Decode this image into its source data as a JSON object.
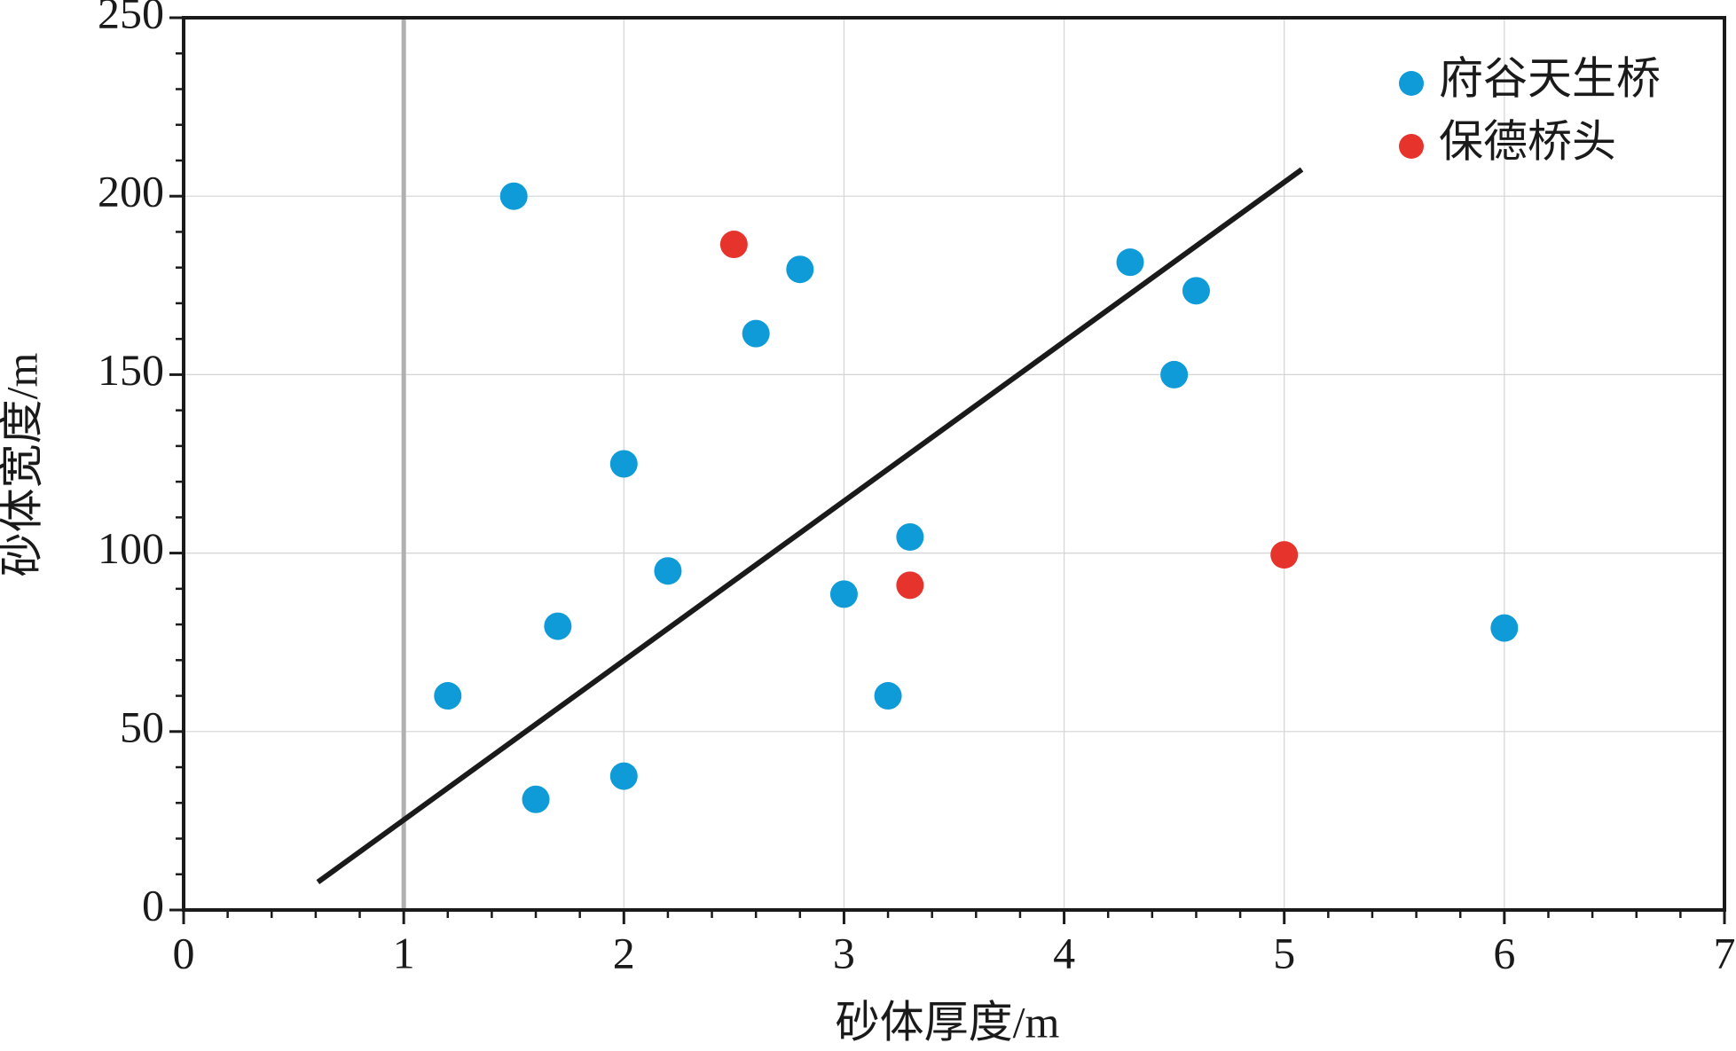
{
  "chart_data": {
    "type": "scatter",
    "xlabel": "砂体厚度/m",
    "ylabel": "砂体宽度/m",
    "xlim": [
      0,
      7
    ],
    "ylim": [
      0,
      250
    ],
    "xticks": [
      0,
      1,
      2,
      3,
      4,
      5,
      6,
      7
    ],
    "yticks": [
      0,
      50,
      100,
      150,
      200,
      250
    ],
    "xminorticks": [
      0.2,
      0.4,
      0.6,
      0.8,
      1.2,
      1.4,
      1.6,
      1.8,
      2.2,
      2.4,
      2.6,
      2.8,
      3.2,
      3.4,
      3.6,
      3.8,
      4.2,
      4.4,
      4.6,
      4.8,
      5.2,
      5.4,
      5.6,
      5.8,
      6.2,
      6.4,
      6.6,
      6.8
    ],
    "yminorticks": [
      10,
      20,
      30,
      40,
      60,
      70,
      80,
      90,
      110,
      120,
      130,
      140,
      160,
      170,
      180,
      190,
      210,
      220,
      230,
      240
    ],
    "grid": true,
    "legend": "upper right",
    "vline": {
      "x": 1,
      "color": "#b0b0b0"
    },
    "fit_line": {
      "x": [
        0.61,
        5.08
      ],
      "y": [
        7.8,
        207.5
      ],
      "color": "#1a1a1a"
    },
    "series": [
      {
        "name": "府谷天生桥",
        "color": "#0e9bd7",
        "x": [
          1.5,
          2.8,
          2.6,
          4.3,
          4.6,
          4.5,
          2.0,
          3.3,
          2.2,
          3.0,
          1.7,
          1.2,
          3.2,
          2.0,
          1.6,
          6.0
        ],
        "values": [
          200,
          179.5,
          161.5,
          181.5,
          173.5,
          150,
          125,
          104.5,
          95,
          88.5,
          79.5,
          60,
          60,
          37.5,
          31,
          79
        ]
      },
      {
        "name": "保德桥头",
        "color": "#e6342d",
        "x": [
          2.5,
          3.3,
          5.0
        ],
        "values": [
          186.5,
          91,
          99.5
        ]
      }
    ]
  }
}
